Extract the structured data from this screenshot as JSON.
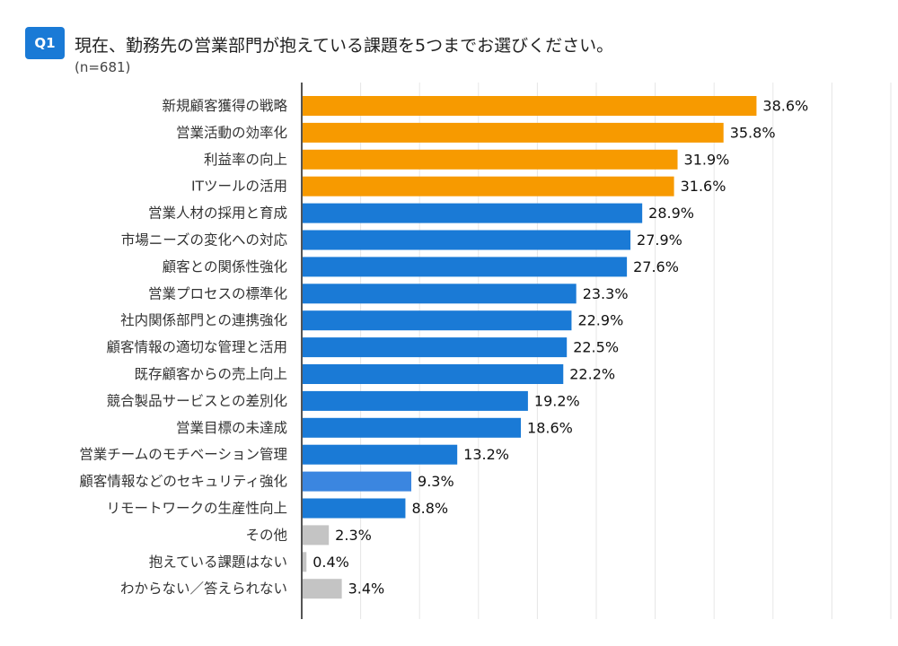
{
  "header": {
    "badge": "Q1",
    "title": "現在、勤務先の営業部門が抱えている課題を5つまでお選びください。",
    "sample": "(n=681)"
  },
  "colors": {
    "top": "#f79a00",
    "main": "#1a7ad6",
    "highlight": "#3b86e0",
    "other": "#c4c4c4",
    "grid": "#e6e6e6",
    "axis": "#555555"
  },
  "chart_data": {
    "type": "bar",
    "orientation": "horizontal",
    "title": "現在、勤務先の営業部門が抱えている課題を5つまでお選びください。",
    "subtitle": "(n=681)",
    "xlim": [
      0,
      50
    ],
    "unit": "%",
    "categories": [
      "新規顧客獲得の戦略",
      "営業活動の効率化",
      "利益率の向上",
      "ITツールの活用",
      "営業人材の採用と育成",
      "市場ニーズの変化への対応",
      "顧客との関係性強化",
      "営業プロセスの標準化",
      "社内関係部門との連携強化",
      "顧客情報の適切な管理と活用",
      "既存顧客からの売上向上",
      "競合製品サービスとの差別化",
      "営業目標の未達成",
      "営業チームのモチベーション管理",
      "顧客情報などのセキュリティ強化",
      "リモートワークの生産性向上",
      "その他",
      "抱えている課題はない",
      "わからない／答えられない"
    ],
    "values": [
      38.6,
      35.8,
      31.9,
      31.6,
      28.9,
      27.9,
      27.6,
      23.3,
      22.9,
      22.5,
      22.2,
      19.2,
      18.6,
      13.2,
      9.3,
      8.8,
      2.3,
      0.4,
      3.4
    ],
    "value_labels": [
      "38.6%",
      "35.8%",
      "31.9%",
      "31.6%",
      "28.9%",
      "27.9%",
      "27.6%",
      "23.3%",
      "22.9%",
      "22.5%",
      "22.2%",
      "19.2%",
      "18.6%",
      "13.2%",
      "9.3%",
      "8.8%",
      "2.3%",
      "0.4%",
      "3.4%"
    ],
    "groups": [
      "top",
      "top",
      "top",
      "top",
      "main",
      "main",
      "main",
      "main",
      "main",
      "main",
      "main",
      "main",
      "main",
      "main",
      "highlight",
      "main",
      "other",
      "other",
      "other"
    ],
    "grid": true
  }
}
